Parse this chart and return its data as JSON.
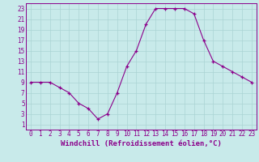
{
  "x": [
    0,
    1,
    2,
    3,
    4,
    5,
    6,
    7,
    8,
    9,
    10,
    11,
    12,
    13,
    14,
    15,
    16,
    17,
    18,
    19,
    20,
    21,
    22,
    23
  ],
  "y": [
    9,
    9,
    9,
    8,
    7,
    5,
    4,
    2,
    3,
    7,
    12,
    15,
    20,
    23,
    23,
    23,
    23,
    22,
    17,
    13,
    12,
    11,
    10,
    9
  ],
  "line_color": "#8B008B",
  "marker_color": "#8B008B",
  "bg_color": "#c8eaea",
  "grid_color": "#aad4d4",
  "xlabel": "Windchill (Refroidissement éolien,°C)",
  "xlim": [
    -0.5,
    23.5
  ],
  "ylim": [
    0,
    24
  ],
  "xticks": [
    0,
    1,
    2,
    3,
    4,
    5,
    6,
    7,
    8,
    9,
    10,
    11,
    12,
    13,
    14,
    15,
    16,
    17,
    18,
    19,
    20,
    21,
    22,
    23
  ],
  "yticks": [
    1,
    3,
    5,
    7,
    9,
    11,
    13,
    15,
    17,
    19,
    21,
    23
  ],
  "tick_fontsize": 5.5,
  "xlabel_fontsize": 6.5,
  "axis_label_color": "#8B008B",
  "spine_color": "#8B008B"
}
